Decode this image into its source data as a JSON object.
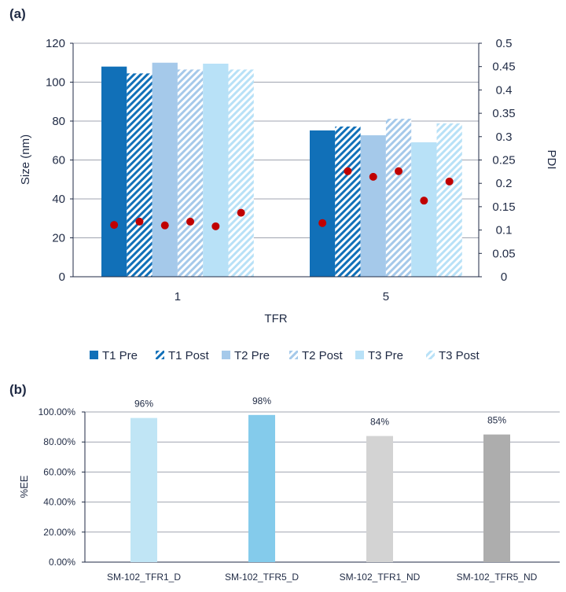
{
  "panel_labels": [
    "(a)",
    "(b)"
  ],
  "chart_data": [
    {
      "type": "bar",
      "xlabel": "TFR",
      "ylabel": "Size (nm)",
      "y2label": "PDI",
      "categories": [
        "1",
        "5"
      ],
      "ylim": [
        0,
        120
      ],
      "yticks": [
        "0",
        "20",
        "40",
        "60",
        "80",
        "100",
        "120"
      ],
      "y2lim": [
        0,
        0.5
      ],
      "y2ticks": [
        "0",
        "0.05",
        "0.1",
        "0.15",
        "0.2",
        "0.25",
        "0.3",
        "0.35",
        "0.4",
        "0.45",
        "0.5"
      ],
      "grid": true,
      "legend_position": "bottom",
      "series": [
        {
          "name": "T1 Pre",
          "values": [
            108,
            75.2
          ],
          "color": "#1170b8",
          "hatched": false
        },
        {
          "name": "T1 Post",
          "values": [
            104.5,
            77.2
          ],
          "color": "#1170b8",
          "hatched": true
        },
        {
          "name": "T2 Pre",
          "values": [
            110,
            72.7
          ],
          "color": "#a5c9ea",
          "hatched": false
        },
        {
          "name": "T2 Post",
          "values": [
            106.5,
            81.2
          ],
          "color": "#a5c9ea",
          "hatched": true
        },
        {
          "name": "T3 Pre",
          "values": [
            109.5,
            69.1
          ],
          "color": "#b8e1f7",
          "hatched": false
        },
        {
          "name": "T3 Post",
          "values": [
            106.5,
            78.8
          ],
          "color": "#b8e1f7",
          "hatched": true
        }
      ],
      "pdi_series": {
        "axis": "secondary",
        "color": "#c00000",
        "values": [
          [
            0.111,
            0.118,
            0.11,
            0.118,
            0.108,
            0.137
          ],
          [
            0.115,
            0.226,
            0.214,
            0.226,
            0.163,
            0.204
          ]
        ]
      }
    },
    {
      "type": "bar",
      "ylabel": "%EE",
      "ylim": [
        0,
        100
      ],
      "yticks": [
        "0.00%",
        "20.00%",
        "40.00%",
        "60.00%",
        "80.00%",
        "100.00%"
      ],
      "grid": true,
      "categories": [
        "SM-102_TFR1_D",
        "SM-102_TFR5_D",
        "SM-102_TFR1_ND",
        "SM-102_TFR5_ND"
      ],
      "values": [
        96,
        98,
        84,
        85
      ],
      "data_labels": [
        "96%",
        "98%",
        "84%",
        "85%"
      ],
      "colors": [
        "#c0e5f5",
        "#84cbeb",
        "#d3d3d3",
        "#adadad"
      ]
    }
  ]
}
